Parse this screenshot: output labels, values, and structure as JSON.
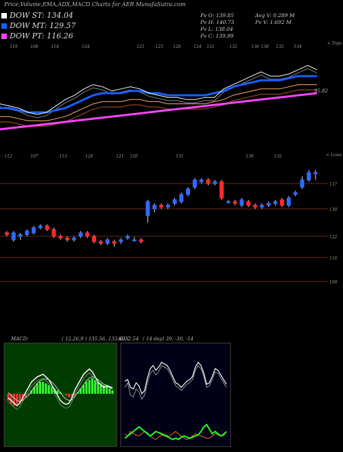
{
  "header": {
    "title": "Price,Volume,EMA,ADX,MACD Charts for AER MunafaSutra.com"
  },
  "legend": [
    {
      "label": "DOW ST:",
      "value": "134.04",
      "color": "#ffffff"
    },
    {
      "label": "DOW MT:",
      "value": "129.57",
      "color": "#1560ff"
    },
    {
      "label": "DOW PT:",
      "value": "116.26",
      "color": "#ff44ff"
    }
  ],
  "stats": {
    "pv": "Pv  O: 139.85",
    "ph": "Pv  H: 140.73",
    "pl": "Pv  L: 138.04",
    "pc": "Pv  C: 139.99",
    "avgv": "Avg V: 0.289 M",
    "pvv": "Pv  V: 1.692  M"
  },
  "ema_panel": {
    "top_tick_labels": [
      "119",
      "108",
      "114",
      "124",
      "121",
      "123",
      "126",
      "124",
      "121",
      "132",
      "136",
      "138",
      "132",
      "134"
    ],
    "bottom_tick_labels": [
      "112",
      "107",
      "113",
      "128",
      "121",
      "120",
      "131",
      "136",
      "132"
    ],
    "corner_top": "< Tops",
    "corner_bottom": "< Lows",
    "last_value": "95.82"
  },
  "chart_data": [
    {
      "type": "line",
      "title": "EMA",
      "series": [
        {
          "name": "",
          "color": "#ffffff",
          "values": [
            122,
            121,
            120,
            118,
            117,
            118,
            121,
            124,
            126,
            129,
            131,
            130,
            128,
            129,
            130,
            129,
            127,
            126,
            125,
            125,
            124,
            124,
            125,
            125,
            129,
            131,
            133,
            135,
            137,
            135,
            135,
            136,
            138,
            140,
            138
          ]
        },
        {
          "name": "",
          "color": "#1560ff",
          "values": [
            120,
            120,
            119,
            118,
            118,
            118,
            119,
            120,
            122,
            124,
            126,
            127,
            127,
            127,
            128,
            128,
            127,
            127,
            126,
            126,
            126,
            126,
            126,
            127,
            128,
            130,
            131,
            132,
            133,
            133,
            133,
            134,
            135,
            135,
            135
          ]
        },
        {
          "name": "",
          "color": "#ff44ff",
          "values": [
            110,
            110.5,
            111,
            111.5,
            112,
            112.5,
            113,
            113.5,
            114,
            114.5,
            115,
            115.5,
            116,
            116.5,
            117,
            117.5,
            118,
            118.5,
            119,
            119.5,
            120,
            120.5,
            121,
            121.5,
            122,
            122.5,
            123,
            123.5,
            124,
            124.5,
            125,
            125.5,
            126,
            126.5,
            127
          ]
        }
      ]
    },
    {
      "type": "candlestick",
      "title": "Price",
      "y_ticks": [
        137,
        130,
        122,
        116,
        109
      ],
      "ylim": [
        105,
        142
      ],
      "candles": [
        {
          "o": 123,
          "c": 122.5,
          "h": 123.5,
          "l": 122
        },
        {
          "o": 121,
          "c": 123,
          "h": 123.5,
          "l": 120.5
        },
        {
          "o": 122,
          "c": 122.5,
          "h": 123,
          "l": 121
        },
        {
          "o": 122.5,
          "c": 123.5,
          "h": 124,
          "l": 122
        },
        {
          "o": 123,
          "c": 124.5,
          "h": 125,
          "l": 122.5
        },
        {
          "o": 124.5,
          "c": 125,
          "h": 125.5,
          "l": 124
        },
        {
          "o": 125,
          "c": 124,
          "h": 125.5,
          "l": 123.5
        },
        {
          "o": 124,
          "c": 122,
          "h": 124.5,
          "l": 121.5
        },
        {
          "o": 122,
          "c": 121.5,
          "h": 122.5,
          "l": 121
        },
        {
          "o": 121.5,
          "c": 121,
          "h": 122,
          "l": 120.5
        },
        {
          "o": 121,
          "c": 121.5,
          "h": 122,
          "l": 120.5
        },
        {
          "o": 122,
          "c": 123,
          "h": 123.5,
          "l": 121.5
        },
        {
          "o": 123,
          "c": 122,
          "h": 123.5,
          "l": 121.5
        },
        {
          "o": 122,
          "c": 120.5,
          "h": 122.5,
          "l": 120
        },
        {
          "o": 120.5,
          "c": 120,
          "h": 121,
          "l": 119.5
        },
        {
          "o": 120,
          "c": 121,
          "h": 121.5,
          "l": 119.5
        },
        {
          "o": 120.5,
          "c": 120,
          "h": 121,
          "l": 119
        },
        {
          "o": 120.5,
          "c": 121,
          "h": 121.5,
          "l": 119.8
        },
        {
          "o": 121.5,
          "c": 122,
          "h": 122.5,
          "l": 121
        },
        {
          "o": 121,
          "c": 121,
          "h": 121.8,
          "l": 120.5
        },
        {
          "o": 121,
          "c": 120.5,
          "h": 121.5,
          "l": 120
        },
        {
          "o": 128,
          "c": 132,
          "h": 132.5,
          "l": 126
        },
        {
          "o": 130,
          "c": 131,
          "h": 131.5,
          "l": 129
        },
        {
          "o": 131,
          "c": 130.5,
          "h": 131.5,
          "l": 130
        },
        {
          "o": 130.5,
          "c": 131,
          "h": 131.5,
          "l": 130
        },
        {
          "o": 131.5,
          "c": 132.5,
          "h": 133,
          "l": 131
        },
        {
          "o": 132,
          "c": 134,
          "h": 134.5,
          "l": 131.5
        },
        {
          "o": 134,
          "c": 135.5,
          "h": 136,
          "l": 133.5
        },
        {
          "o": 136,
          "c": 138,
          "h": 138.5,
          "l": 135.5
        },
        {
          "o": 137.5,
          "c": 138,
          "h": 138.5,
          "l": 137
        },
        {
          "o": 138,
          "c": 137,
          "h": 138.5,
          "l": 136.5
        },
        {
          "o": 137,
          "c": 137.5,
          "h": 138,
          "l": 136.5
        },
        {
          "o": 137.5,
          "c": 133,
          "h": 138,
          "l": 132.5
        },
        {
          "o": 132,
          "c": 132,
          "h": 132.5,
          "l": 131.5
        },
        {
          "o": 132,
          "c": 131.5,
          "h": 132.5,
          "l": 131
        },
        {
          "o": 131,
          "c": 132.5,
          "h": 133,
          "l": 130.5
        },
        {
          "o": 132,
          "c": 131,
          "h": 132.5,
          "l": 130.5
        },
        {
          "o": 131,
          "c": 130.5,
          "h": 131.5,
          "l": 130
        },
        {
          "o": 130.5,
          "c": 131,
          "h": 131.5,
          "l": 130
        },
        {
          "o": 131,
          "c": 131.5,
          "h": 132,
          "l": 130.5
        },
        {
          "o": 131.5,
          "c": 132,
          "h": 132.5,
          "l": 131
        },
        {
          "o": 132.5,
          "c": 131,
          "h": 133,
          "l": 130.5
        },
        {
          "o": 131,
          "c": 133,
          "h": 133.5,
          "l": 130.5
        },
        {
          "o": 134,
          "c": 134.5,
          "h": 135,
          "l": 133.5
        },
        {
          "o": 136,
          "c": 138,
          "h": 139,
          "l": 135.5
        },
        {
          "o": 138,
          "c": 140,
          "h": 140.7,
          "l": 137.5
        },
        {
          "o": 139.85,
          "c": 139.99,
          "h": 140.73,
          "l": 138.04
        }
      ]
    },
    {
      "type": "bar",
      "title": "MACD",
      "label": "MACD:",
      "params": "( 12,26,9 ) 135.56,  133.02, 2.54",
      "histogram": [
        -2,
        -3,
        -3.5,
        -3,
        -2.5,
        -2,
        -1,
        0,
        1,
        2,
        3,
        3.5,
        3.5,
        3,
        2.5,
        2,
        1.5,
        1,
        0.5,
        0,
        -0.5,
        -1,
        -1,
        -0.5,
        0.5,
        1.5,
        2.5,
        3.5,
        4,
        4.5,
        4,
        3.5,
        3,
        2.5,
        2,
        1.5,
        1
      ],
      "macd": [
        -1,
        -2,
        -3,
        -4,
        -3,
        -1,
        1,
        3,
        5,
        6,
        7,
        7.5,
        8,
        7,
        6,
        4,
        2,
        0,
        -2,
        -3,
        -3.5,
        -3,
        -1,
        2,
        4,
        6,
        8,
        9,
        10,
        9,
        7,
        5,
        4,
        3,
        3.5,
        3,
        2.5
      ],
      "signal": [
        1,
        0,
        -1,
        -2,
        -2.5,
        -2,
        -1,
        0,
        1.5,
        3,
        4.5,
        5.5,
        6,
        6.2,
        6,
        5,
        4,
        2.5,
        1,
        -0.5,
        -1.5,
        -2,
        -1.8,
        -0.5,
        1,
        2.5,
        4,
        5.5,
        6.5,
        7,
        6.8,
        6,
        5,
        4.2,
        3.8,
        3.4,
        3
      ]
    },
    {
      "type": "line",
      "title": "ADX",
      "label": "ADX",
      "params": "( 14  day) 39,  -30,  -14",
      "plus_di": [
        30,
        36,
        20,
        18,
        28,
        24,
        15,
        20,
        36,
        48,
        52,
        46,
        50,
        58,
        56,
        54,
        48,
        40,
        32,
        30,
        26,
        30,
        34,
        36,
        40,
        52,
        58,
        54,
        44,
        30,
        32,
        40,
        50,
        48,
        42,
        36,
        30
      ],
      "adx": [
        38,
        40,
        30,
        28,
        36,
        32,
        22,
        26,
        42,
        54,
        58,
        52,
        56,
        62,
        60,
        58,
        52,
        44,
        36,
        34,
        30,
        34,
        38,
        40,
        44,
        56,
        62,
        58,
        48,
        34,
        36,
        44,
        54,
        52,
        46,
        40,
        34
      ],
      "minus_di": [
        10,
        8,
        12,
        10,
        9,
        8,
        10,
        12,
        11,
        8,
        6,
        5,
        7,
        9,
        8,
        7,
        8,
        10,
        12,
        10,
        8,
        6,
        5,
        6,
        8,
        10,
        9,
        8,
        7,
        6,
        6,
        8,
        10,
        9,
        8,
        10,
        12
      ],
      "green": [
        6,
        8,
        10,
        12,
        14,
        16,
        14,
        12,
        10,
        8,
        10,
        12,
        11,
        10,
        9,
        8,
        6,
        5,
        6,
        5,
        7,
        8,
        7,
        6,
        7,
        8,
        9,
        12,
        16,
        18,
        14,
        10,
        12,
        10,
        8,
        9,
        12
      ]
    }
  ]
}
